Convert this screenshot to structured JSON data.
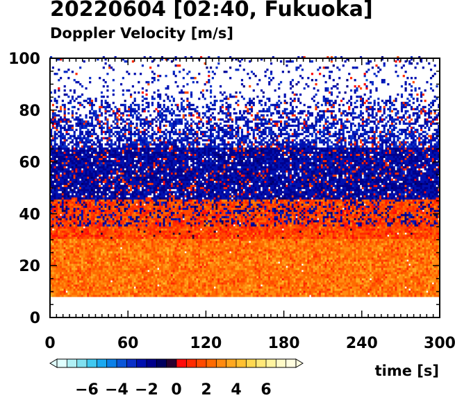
{
  "chart_data": {
    "type": "heatmap",
    "title": "20220604 [02:40, Fukuoka]",
    "subtitle": "Doppler Velocity [m/s]",
    "xlabel": "time [s]",
    "ylabel": "",
    "xlim": [
      0,
      300
    ],
    "ylim": [
      0,
      100
    ],
    "x_ticks": [
      0,
      60,
      120,
      180,
      240,
      300
    ],
    "x_minor_step": 5,
    "y_ticks": [
      0,
      20,
      40,
      60,
      80,
      100
    ],
    "y_minor_step": 5,
    "data_height_range": [
      8,
      100
    ],
    "bands": [
      {
        "height_from": 8,
        "height_to": 30,
        "velocity_mean": 2.5,
        "coverage": "dense"
      },
      {
        "height_from": 30,
        "height_to": 45,
        "velocity_mean": 1.5,
        "coverage": "dense"
      },
      {
        "height_from": 45,
        "height_to": 65,
        "velocity_mean": -2.0,
        "coverage": "mostly"
      },
      {
        "height_from": 65,
        "height_to": 100,
        "velocity_mean": -2.5,
        "coverage": "sparse"
      }
    ],
    "colorbar": {
      "label_values": [
        -6,
        -4,
        -2,
        0,
        2,
        4,
        6
      ],
      "range": [
        -8,
        8
      ],
      "colors": [
        "#e0ffff",
        "#b0f0f5",
        "#80e0f0",
        "#40c8f0",
        "#1aa8f0",
        "#0a80e8",
        "#0a56d8",
        "#0a30c8",
        "#0010b0",
        "#00008c",
        "#000060",
        "#2a0030",
        "#ff0a0a",
        "#ff2a00",
        "#ff4a00",
        "#ff6a00",
        "#ff8a10",
        "#ffa820",
        "#ffc030",
        "#ffd850",
        "#ffe878",
        "#fff4a0",
        "#fffac8",
        "#fffde0"
      ]
    }
  }
}
